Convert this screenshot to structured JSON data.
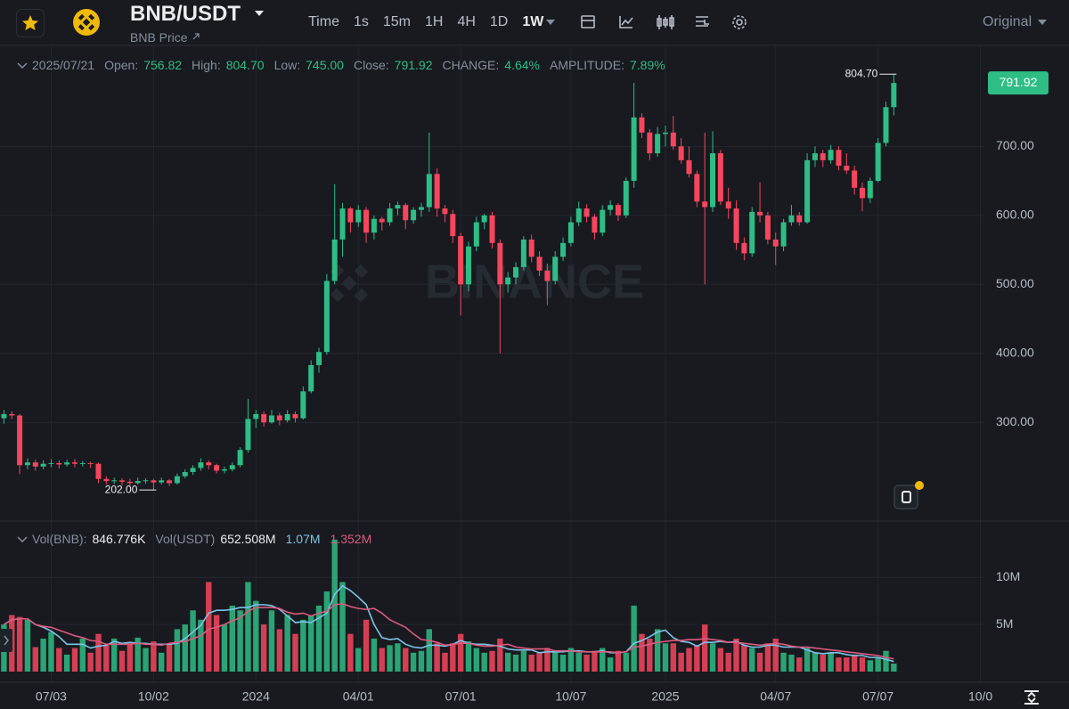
{
  "header": {
    "pair": "BNB/USDT",
    "subtitle": "BNB Price",
    "intervals": [
      "Time",
      "1s",
      "15m",
      "1H",
      "4H",
      "1D"
    ],
    "selected_interval": "1W",
    "view": "Original"
  },
  "chart_data": [
    {
      "type": "candlestick",
      "date": "2025/07/21",
      "info": [
        {
          "label": "Open:",
          "value": "756.82"
        },
        {
          "label": "High:",
          "value": "804.70"
        },
        {
          "label": "Low:",
          "value": "745.00"
        },
        {
          "label": "Close:",
          "value": "791.92"
        },
        {
          "label": "CHANGE:",
          "value": "4.64%"
        },
        {
          "label": "AMPLITUDE:",
          "value": "7.89%"
        }
      ],
      "watermark": "BINANCE",
      "open": [
        306,
        312,
        310,
        238,
        242,
        236,
        240,
        241,
        239,
        242,
        240,
        241,
        240,
        218,
        215,
        216,
        214,
        212,
        215,
        216,
        213,
        216,
        212,
        222,
        228,
        234,
        242,
        238,
        230,
        232,
        238,
        260,
        305,
        312,
        300,
        310,
        303,
        312,
        306,
        345,
        383,
        402,
        505,
        565,
        610,
        590,
        608,
        575,
        595,
        590,
        610,
        615,
        593,
        608,
        612,
        660,
        610,
        602,
        570,
        500,
        555,
        590,
        600,
        560,
        500,
        510,
        525,
        565,
        540,
        520,
        505,
        540,
        560,
        590,
        610,
        598,
        575,
        608,
        615,
        600,
        650,
        742,
        720,
        690,
        718,
        720,
        700,
        680,
        660,
        620,
        612,
        690,
        620,
        610,
        560,
        545,
        605,
        600,
        565,
        555,
        590,
        600,
        590,
        680,
        690,
        680,
        695,
        672,
        665,
        640,
        625,
        650,
        705,
        756.82,
        null,
        null,
        null,
        null,
        null,
        null,
        null,
        null,
        null,
        null,
        null
      ],
      "high": [
        318,
        316,
        312,
        248,
        246,
        245,
        247,
        245,
        246,
        247,
        244,
        243,
        242,
        222,
        220,
        219,
        218,
        220,
        219,
        218,
        220,
        218,
        226,
        232,
        238,
        248,
        245,
        240,
        236,
        242,
        264,
        334,
        318,
        316,
        318,
        314,
        318,
        316,
        352,
        390,
        408,
        515,
        645,
        618,
        612,
        615,
        612,
        600,
        598,
        618,
        620,
        618,
        612,
        618,
        720,
        668,
        615,
        608,
        575,
        562,
        598,
        602,
        605,
        565,
        518,
        532,
        570,
        572,
        548,
        530,
        548,
        568,
        598,
        620,
        616,
        602,
        615,
        622,
        618,
        655,
        792,
        748,
        725,
        728,
        730,
        744,
        712,
        700,
        665,
        720,
        722,
        695,
        640,
        622,
        568,
        612,
        648,
        605,
        575,
        595,
        615,
        605,
        690,
        700,
        695,
        702,
        700,
        690,
        672,
        648,
        655,
        712,
        765,
        804.7,
        null,
        null,
        null,
        null,
        null,
        null,
        null,
        null,
        null,
        null,
        null
      ],
      "low": [
        298,
        305,
        225,
        232,
        230,
        232,
        235,
        233,
        236,
        235,
        236,
        234,
        212,
        210,
        211,
        209,
        208,
        210,
        211,
        202,
        210,
        208,
        210,
        219,
        224,
        230,
        232,
        226,
        226,
        229,
        235,
        256,
        292,
        294,
        298,
        296,
        300,
        300,
        304,
        342,
        372,
        398,
        500,
        540,
        575,
        583,
        560,
        565,
        578,
        585,
        600,
        580,
        588,
        598,
        605,
        598,
        590,
        560,
        455,
        490,
        548,
        580,
        552,
        400,
        488,
        500,
        520,
        532,
        512,
        470,
        500,
        534,
        555,
        584,
        590,
        565,
        570,
        600,
        592,
        596,
        640,
        712,
        680,
        685,
        700,
        695,
        675,
        655,
        612,
        500,
        605,
        615,
        595,
        550,
        535,
        540,
        590,
        558,
        528,
        548,
        585,
        585,
        588,
        670,
        670,
        675,
        665,
        660,
        630,
        606,
        618,
        648,
        700,
        745,
        null,
        null,
        null,
        null,
        null,
        null,
        null,
        null,
        null,
        null,
        null
      ],
      "close": [
        312,
        310,
        238,
        242,
        236,
        240,
        241,
        239,
        242,
        240,
        241,
        240,
        218,
        215,
        216,
        214,
        212,
        215,
        216,
        213,
        216,
        212,
        222,
        228,
        234,
        242,
        238,
        230,
        232,
        238,
        260,
        305,
        312,
        300,
        310,
        303,
        312,
        306,
        345,
        383,
        402,
        505,
        565,
        610,
        590,
        608,
        575,
        595,
        590,
        610,
        615,
        593,
        608,
        612,
        660,
        610,
        602,
        570,
        500,
        555,
        590,
        600,
        560,
        500,
        510,
        525,
        565,
        540,
        520,
        505,
        540,
        560,
        590,
        610,
        598,
        575,
        608,
        615,
        600,
        650,
        742,
        720,
        690,
        718,
        720,
        700,
        680,
        660,
        620,
        612,
        690,
        620,
        610,
        560,
        545,
        605,
        600,
        565,
        555,
        590,
        600,
        590,
        680,
        690,
        680,
        695,
        672,
        665,
        640,
        625,
        650,
        705,
        756.82,
        791.92,
        null,
        null,
        null,
        null,
        null,
        null,
        null,
        null,
        null,
        null,
        null
      ],
      "up_color": "#2ebd85",
      "down_color": "#f6465d",
      "ylim": [
        157,
        845
      ],
      "yticks": [
        {
          "value": 300,
          "label": "300.00"
        },
        {
          "value": 400,
          "label": "400.00"
        },
        {
          "value": 500,
          "label": "500.00"
        },
        {
          "value": 600,
          "label": "600.00"
        },
        {
          "value": 700,
          "label": "700.00"
        }
      ],
      "grid": true,
      "last_price_label": "791.92",
      "high_label": "804.70",
      "low_label": "202.00"
    },
    {
      "type": "bar",
      "legend": [
        {
          "label": "Vol(BNB):",
          "value": "846.776K"
        },
        {
          "label": "Vol(USDT)",
          "value": "652.508M"
        }
      ],
      "categories": [
        null,
        null,
        null,
        null,
        null,
        null,
        "07/03",
        null,
        null,
        null,
        null,
        null,
        null,
        null,
        null,
        null,
        null,
        null,
        null,
        "10/02",
        null,
        null,
        null,
        null,
        null,
        null,
        null,
        null,
        null,
        null,
        null,
        null,
        "2024",
        null,
        null,
        null,
        null,
        null,
        null,
        null,
        null,
        null,
        null,
        null,
        null,
        "04/01",
        null,
        null,
        null,
        null,
        null,
        null,
        null,
        null,
        null,
        null,
        null,
        null,
        "07/01",
        null,
        null,
        null,
        null,
        null,
        null,
        null,
        null,
        null,
        null,
        null,
        null,
        null,
        "10/07",
        null,
        null,
        null,
        null,
        null,
        null,
        null,
        null,
        null,
        null,
        null,
        "2025",
        null,
        null,
        null,
        null,
        null,
        null,
        null,
        null,
        null,
        null,
        null,
        null,
        null,
        "04/07",
        null,
        null,
        null,
        null,
        null,
        null,
        null,
        null,
        null,
        null,
        null,
        null,
        "07/07",
        null,
        null,
        null,
        null,
        null,
        null,
        null,
        null,
        null,
        null,
        null,
        null,
        "10/0"
      ],
      "series": [
        {
          "type": "bar",
          "values": [
            5000000,
            6000000,
            5800000,
            5500000,
            2600000,
            3500000,
            4200000,
            2500000,
            1800000,
            2500000,
            3500000,
            2000000,
            4000000,
            2800000,
            3500000,
            2200000,
            3000000,
            3600000,
            2500000,
            3200000,
            2000000,
            3000000,
            4500000,
            5000000,
            6500000,
            5500000,
            9500000,
            6000000,
            5000000,
            7000000,
            6500000,
            9500000,
            7500000,
            5000000,
            6500000,
            4500000,
            6000000,
            4000000,
            5500000,
            6000000,
            7000000,
            8500000,
            14000000,
            9500000,
            4000000,
            2500000,
            5500000,
            3500000,
            2500000,
            2800000,
            3000000,
            2500000,
            2000000,
            2200000,
            4500000,
            3000000,
            2000000,
            3000000,
            4000000,
            3200000,
            2500000,
            2000000,
            2200000,
            3500000,
            2000000,
            1800000,
            2200000,
            1800000,
            2000000,
            2500000,
            2200000,
            1800000,
            2500000,
            2000000,
            1800000,
            2200000,
            2500000,
            1500000,
            2200000,
            2000000,
            7000000,
            4000000,
            3500000,
            4500000,
            3000000,
            3000000,
            2000000,
            2500000,
            2800000,
            5000000,
            3000000,
            2500000,
            2000000,
            3500000,
            2800000,
            2500000,
            2000000,
            3000000,
            3500000,
            2000000,
            1800000,
            1500000,
            2500000,
            2000000,
            1800000,
            2000000,
            1500000,
            1500000,
            1800000,
            1500000,
            1200000,
            1500000,
            2200000,
            846776,
            null,
            null,
            null,
            null,
            null,
            null,
            null,
            null,
            null,
            null,
            null
          ]
        },
        {
          "type": "line",
          "color": "#7cc4e8",
          "label": "1.07M",
          "values": [
            5000000,
            5500000,
            5600000,
            5600000,
            5000000,
            4700000,
            4300000,
            3700000,
            2900000,
            2900000,
            2900000,
            2500000,
            2700000,
            2800000,
            3200000,
            3000000,
            3100000,
            3000000,
            3000000,
            2900000,
            2900000,
            2900000,
            3000000,
            3500000,
            4200000,
            4900000,
            6200000,
            6500000,
            6500000,
            6600000,
            6800000,
            6800000,
            7100000,
            7100000,
            7000000,
            6600000,
            5900000,
            5200000,
            5300000,
            5200000,
            5700000,
            6200000,
            8200000,
            9100000,
            8600000,
            7900000,
            7100000,
            5000000,
            3600000,
            3400000,
            3500000,
            2900000,
            2600000,
            2500000,
            2800000,
            2800000,
            2700000,
            2900000,
            3300000,
            3000000,
            2900000,
            2900000,
            2800000,
            2700000,
            2400000,
            2300000,
            2300000,
            2300000,
            2000000,
            2100000,
            2100000,
            2100000,
            2200000,
            2200000,
            2100000,
            2100000,
            2200000,
            2000000,
            2000000,
            2100000,
            3000000,
            3300000,
            3700000,
            4200000,
            4400000,
            3600000,
            3200000,
            3100000,
            2700000,
            3100000,
            3100000,
            3200000,
            3100000,
            3200000,
            2800000,
            2600000,
            2600000,
            2800000,
            2800000,
            2600000,
            2600000,
            2600000,
            2300000,
            2000000,
            1900000,
            2000000,
            2000000,
            1800000,
            1700000,
            1700000,
            1500000,
            1500000,
            1300000,
            1070000,
            null,
            null,
            null,
            null,
            null,
            null,
            null,
            null,
            null,
            null,
            null
          ]
        },
        {
          "type": "line",
          "color": "#dc5a7e",
          "label": "1.352M",
          "values": [
            5000000,
            5500000,
            5600000,
            5600000,
            5000000,
            4800000,
            4700000,
            4400000,
            4100000,
            3800000,
            3600000,
            3300000,
            3200000,
            2900000,
            2900000,
            2900000,
            2900000,
            3000000,
            2900000,
            2900000,
            2800000,
            3000000,
            3100000,
            3200000,
            3500000,
            3800000,
            4500000,
            4700000,
            5000000,
            5400000,
            5700000,
            6400000,
            6800000,
            6800000,
            6800000,
            6700000,
            6300000,
            6100000,
            6200000,
            5900000,
            6200000,
            6400000,
            7100000,
            7200000,
            6900000,
            6700000,
            6600000,
            6700000,
            6200000,
            5500000,
            5100000,
            4700000,
            4000000,
            3400000,
            3300000,
            3100000,
            2800000,
            2900000,
            3000000,
            3000000,
            2800000,
            2700000,
            2700000,
            2800000,
            2900000,
            2600000,
            2500000,
            2400000,
            2400000,
            2400000,
            2200000,
            2200000,
            2200000,
            2100000,
            2100000,
            2100000,
            2100000,
            2100000,
            2000000,
            2100000,
            2600000,
            2700000,
            2900000,
            3100000,
            3200000,
            3300000,
            3300000,
            3400000,
            3400000,
            3500000,
            3400000,
            3300000,
            3100000,
            3100000,
            3000000,
            2900000,
            2800000,
            2900000,
            3000000,
            2900000,
            2700000,
            2600000,
            2600000,
            2500000,
            2400000,
            2300000,
            2200000,
            2100000,
            2000000,
            1900000,
            1800000,
            1700000,
            1500000,
            1352000,
            null,
            null,
            null,
            null,
            null,
            null,
            null,
            null,
            null,
            null,
            null
          ]
        }
      ],
      "ylim": [
        0,
        15500000
      ],
      "yticks": [
        {
          "value": 5000000,
          "label": "5M"
        },
        {
          "value": 10000000,
          "label": "10M"
        }
      ],
      "grid": true
    }
  ]
}
